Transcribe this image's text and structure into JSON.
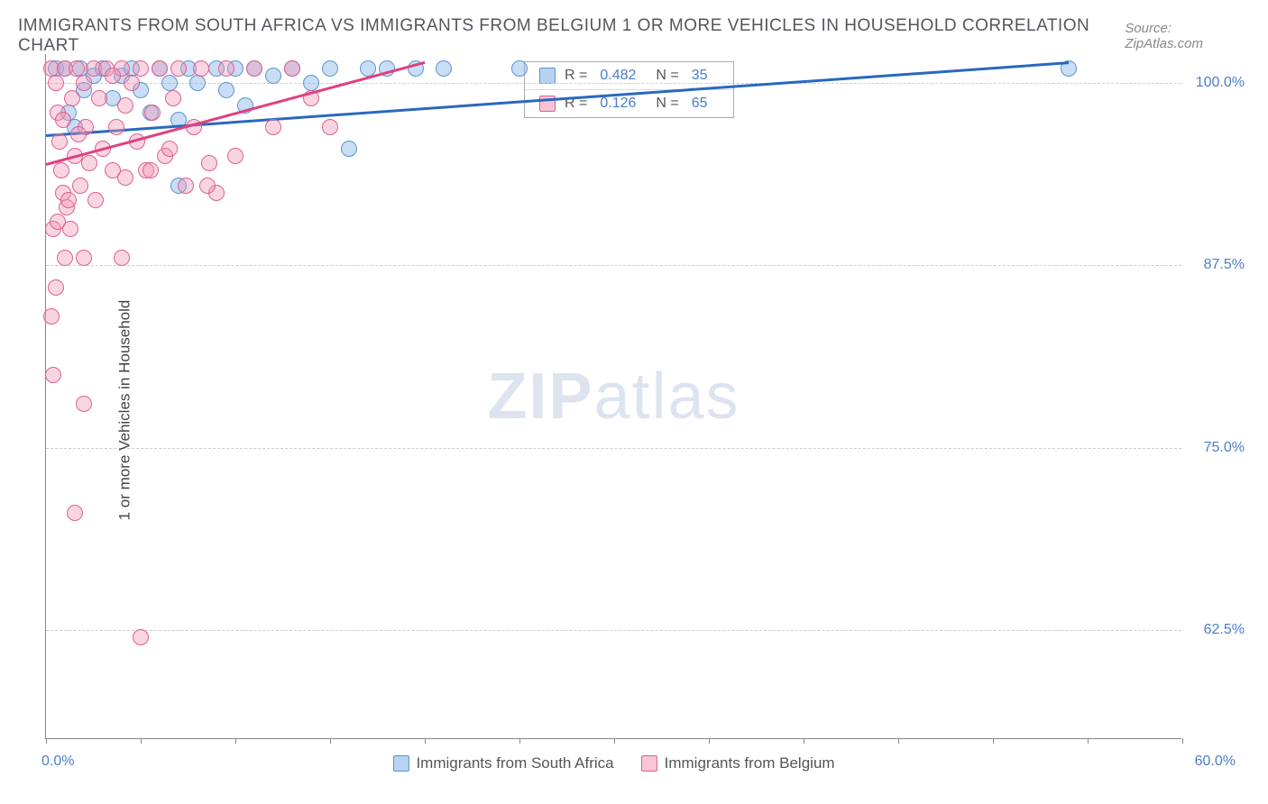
{
  "title": "IMMIGRANTS FROM SOUTH AFRICA VS IMMIGRANTS FROM BELGIUM 1 OR MORE VEHICLES IN HOUSEHOLD CORRELATION CHART",
  "source": "Source: ZipAtlas.com",
  "watermark_a": "ZIP",
  "watermark_b": "atlas",
  "chart": {
    "type": "scatter",
    "y_label": "1 or more Vehicles in Household",
    "x_min": 0.0,
    "x_max": 60.0,
    "y_min": 55.0,
    "y_max": 102.0,
    "y_ticks": [
      62.5,
      75.0,
      87.5,
      100.0
    ],
    "y_tick_labels": [
      "62.5%",
      "75.0%",
      "87.5%",
      "100.0%"
    ],
    "x_ticks": [
      0,
      5,
      10,
      15,
      20,
      25,
      30,
      35,
      40,
      45,
      50,
      55,
      60
    ],
    "x_left_label": "0.0%",
    "x_right_label": "60.0%",
    "background_color": "#ffffff",
    "grid_color": "#cccccc",
    "series": [
      {
        "name": "Immigrants from South Africa",
        "color_fill": "rgba(135,180,230,0.45)",
        "color_stroke": "#5a95d0",
        "line_color": "#2968c0",
        "R": "0.482",
        "N": "35",
        "trend": {
          "x1": 0,
          "y1": 96.5,
          "x2": 54,
          "y2": 101.5
        },
        "points": [
          [
            0.5,
            101
          ],
          [
            1.0,
            101
          ],
          [
            1.2,
            98
          ],
          [
            1.5,
            97
          ],
          [
            1.8,
            101
          ],
          [
            2.0,
            99.5
          ],
          [
            2.5,
            100.5
          ],
          [
            3.0,
            101
          ],
          [
            3.5,
            99
          ],
          [
            4.0,
            100.5
          ],
          [
            4.5,
            101
          ],
          [
            5.0,
            99.5
          ],
          [
            5.5,
            98
          ],
          [
            6.0,
            101
          ],
          [
            6.5,
            100
          ],
          [
            7.0,
            97.5
          ],
          [
            7.5,
            101
          ],
          [
            8.0,
            100
          ],
          [
            9.0,
            101
          ],
          [
            9.5,
            99.5
          ],
          [
            10,
            101
          ],
          [
            10.5,
            98.5
          ],
          [
            11,
            101
          ],
          [
            12,
            100.5
          ],
          [
            13,
            101
          ],
          [
            14,
            100
          ],
          [
            15,
            101
          ],
          [
            16,
            95.5
          ],
          [
            17,
            101
          ],
          [
            18,
            101
          ],
          [
            19.5,
            101
          ],
          [
            21,
            101
          ],
          [
            25,
            101
          ],
          [
            7,
            93
          ],
          [
            54,
            101
          ]
        ]
      },
      {
        "name": "Immigrants from Belgium",
        "color_fill": "rgba(240,150,180,0.40)",
        "color_stroke": "#e06090",
        "line_color": "#e04080",
        "R": "0.126",
        "N": "65",
        "trend": {
          "x1": 0,
          "y1": 94.5,
          "x2": 20,
          "y2": 101.5
        },
        "points": [
          [
            0.3,
            101
          ],
          [
            0.5,
            100
          ],
          [
            0.6,
            98
          ],
          [
            0.7,
            96
          ],
          [
            0.8,
            94
          ],
          [
            0.9,
            92.5
          ],
          [
            1.0,
            101
          ],
          [
            1.1,
            91.5
          ],
          [
            1.2,
            92
          ],
          [
            1.4,
            99
          ],
          [
            1.5,
            95
          ],
          [
            1.6,
            101
          ],
          [
            1.8,
            93
          ],
          [
            2.0,
            100
          ],
          [
            2.1,
            97
          ],
          [
            2.3,
            94.5
          ],
          [
            2.5,
            101
          ],
          [
            2.6,
            92
          ],
          [
            2.8,
            99
          ],
          [
            3.0,
            95.5
          ],
          [
            3.2,
            101
          ],
          [
            3.5,
            94
          ],
          [
            3.7,
            97
          ],
          [
            4.0,
            101
          ],
          [
            4.2,
            93.5
          ],
          [
            4.5,
            100
          ],
          [
            4.8,
            96
          ],
          [
            5.0,
            101
          ],
          [
            5.3,
            94
          ],
          [
            5.6,
            98
          ],
          [
            6.0,
            101
          ],
          [
            6.3,
            95
          ],
          [
            6.7,
            99
          ],
          [
            7.0,
            101
          ],
          [
            7.4,
            93
          ],
          [
            7.8,
            97
          ],
          [
            8.2,
            101
          ],
          [
            8.6,
            94.5
          ],
          [
            9.0,
            92.5
          ],
          [
            9.5,
            101
          ],
          [
            10,
            95
          ],
          [
            2.0,
            88
          ],
          [
            0.4,
            90
          ],
          [
            0.6,
            90.5
          ],
          [
            1.3,
            90
          ],
          [
            1.0,
            88
          ],
          [
            0.5,
            86
          ],
          [
            0.3,
            84
          ],
          [
            0.4,
            80
          ],
          [
            2.0,
            78
          ],
          [
            4.0,
            88
          ],
          [
            5.5,
            94
          ],
          [
            6.5,
            95.5
          ],
          [
            8.5,
            93
          ],
          [
            11,
            101
          ],
          [
            12,
            97
          ],
          [
            13,
            101
          ],
          [
            14,
            99
          ],
          [
            15,
            97
          ],
          [
            1.5,
            70.5
          ],
          [
            5,
            62
          ],
          [
            3.5,
            100.5
          ],
          [
            4.2,
            98.5
          ],
          [
            0.9,
            97.5
          ],
          [
            1.7,
            96.5
          ]
        ]
      }
    ]
  },
  "legend_bottom": [
    {
      "label": "Immigrants from South Africa",
      "swatch": "blue"
    },
    {
      "label": "Immigrants from Belgium",
      "swatch": "pink"
    }
  ]
}
